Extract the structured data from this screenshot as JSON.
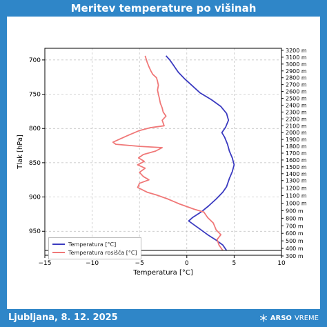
{
  "title": "Meritev temperature po višinah",
  "footer": {
    "location_date": "Ljubljana, 8. 12. 2025",
    "brand_strong": "ARSO",
    "brand_light": "VREME",
    "icon": "snowflake-icon"
  },
  "colors": {
    "background": "#2f86c8",
    "temperature": "#3a3ac0",
    "dewpoint": "#f07878",
    "grid": "#bbbbbb"
  },
  "chart_data": {
    "type": "line",
    "xlabel": "Temperatura [°C]",
    "ylabel": "Tlak [hPa]",
    "xlim": [
      -15,
      10
    ],
    "ylim": [
      985,
      683
    ],
    "x_ticks": [
      "−15",
      "−10",
      "−5",
      "0",
      "5",
      "10"
    ],
    "x_tick_values": [
      -15,
      -10,
      -5,
      0,
      5,
      10
    ],
    "y_ticks": [
      "700",
      "750",
      "800",
      "850",
      "900",
      "950"
    ],
    "y_tick_values": [
      700,
      750,
      800,
      850,
      900,
      950
    ],
    "grid": true,
    "legend_position": "bottom-left",
    "surface_pressure": 978,
    "altitude_axis": {
      "labels": [
        "3200 m",
        "3100 m",
        "3000 m",
        "2900 m",
        "2800 m",
        "2700 m",
        "2600 m",
        "2500 m",
        "2400 m",
        "2300 m",
        "2200 m",
        "2100 m",
        "2000 m",
        "1900 m",
        "1800 m",
        "1700 m",
        "1600 m",
        "1500 m",
        "1400 m",
        "1300 m",
        "1200 m",
        "1100 m",
        "1000 m",
        "900 m",
        "800 m",
        "700 m",
        "600 m",
        "500 m",
        "400 m",
        "300 m"
      ],
      "pressures": [
        686,
        696,
        706,
        716,
        726,
        736,
        746,
        756,
        766,
        776,
        786,
        796,
        806,
        816,
        826,
        836,
        846,
        856,
        866,
        876,
        887,
        898,
        909,
        920,
        931,
        942,
        953,
        964,
        975,
        986
      ]
    },
    "series": [
      {
        "name": "Temperatura [°C]",
        "color": "#3a3ac0",
        "points": [
          [
            4.2,
            978
          ],
          [
            3.8,
            970
          ],
          [
            3.0,
            962
          ],
          [
            2.2,
            955
          ],
          [
            1.5,
            948
          ],
          [
            0.8,
            941
          ],
          [
            0.2,
            935
          ],
          [
            0.6,
            930
          ],
          [
            1.5,
            922
          ],
          [
            2.3,
            913
          ],
          [
            3.1,
            903
          ],
          [
            3.8,
            893
          ],
          [
            4.2,
            885
          ],
          [
            4.5,
            873
          ],
          [
            4.8,
            863
          ],
          [
            5.0,
            853
          ],
          [
            4.8,
            843
          ],
          [
            4.5,
            833
          ],
          [
            4.3,
            823
          ],
          [
            4.0,
            813
          ],
          [
            3.7,
            806
          ],
          [
            4.1,
            798
          ],
          [
            4.4,
            788
          ],
          [
            4.2,
            778
          ],
          [
            3.6,
            768
          ],
          [
            2.6,
            758
          ],
          [
            1.4,
            748
          ],
          [
            0.6,
            738
          ],
          [
            -0.2,
            728
          ],
          [
            -0.9,
            718
          ],
          [
            -1.4,
            708
          ],
          [
            -1.8,
            700
          ],
          [
            -2.2,
            694
          ]
        ]
      },
      {
        "name": "Temperatura rosišča [°C]",
        "color": "#f07878",
        "points": [
          [
            3.8,
            978
          ],
          [
            3.4,
            970
          ],
          [
            3.2,
            962
          ],
          [
            3.6,
            955
          ],
          [
            3.1,
            948
          ],
          [
            2.8,
            938
          ],
          [
            2.2,
            930
          ],
          [
            1.8,
            922
          ],
          [
            0.8,
            918
          ],
          [
            -0.8,
            910
          ],
          [
            -2.0,
            903
          ],
          [
            -3.2,
            897
          ],
          [
            -4.2,
            893
          ],
          [
            -5.2,
            886
          ],
          [
            -5.0,
            880
          ],
          [
            -4.0,
            875
          ],
          [
            -4.6,
            870
          ],
          [
            -5.0,
            864
          ],
          [
            -4.4,
            858
          ],
          [
            -5.2,
            853
          ],
          [
            -4.5,
            848
          ],
          [
            -5.1,
            843
          ],
          [
            -4.6,
            838
          ],
          [
            -3.3,
            833
          ],
          [
            -2.6,
            828
          ],
          [
            -5.0,
            826
          ],
          [
            -7.5,
            823
          ],
          [
            -7.8,
            820
          ],
          [
            -7.0,
            815
          ],
          [
            -6.2,
            810
          ],
          [
            -5.0,
            803
          ],
          [
            -3.9,
            799
          ],
          [
            -2.4,
            796
          ],
          [
            -2.6,
            788
          ],
          [
            -2.2,
            782
          ],
          [
            -2.5,
            776
          ],
          [
            -2.6,
            770
          ],
          [
            -2.8,
            763
          ],
          [
            -2.9,
            756
          ],
          [
            -3.0,
            750
          ],
          [
            -3.1,
            744
          ],
          [
            -3.0,
            737
          ],
          [
            -3.1,
            731
          ],
          [
            -3.2,
            726
          ],
          [
            -3.6,
            721
          ],
          [
            -3.8,
            716
          ],
          [
            -4.0,
            710
          ],
          [
            -4.2,
            703
          ],
          [
            -4.4,
            694
          ]
        ]
      }
    ]
  }
}
